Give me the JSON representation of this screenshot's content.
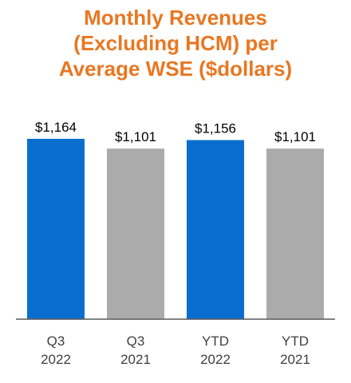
{
  "colors": {
    "title": "#E87722",
    "highlight_bar": "#0A6ED1",
    "comparison_bar": "#ABABAB",
    "axis": "#595959",
    "text": "#000000",
    "tick_text": "#3F3F3F"
  },
  "chart_data": {
    "type": "bar",
    "title_lines": [
      "Monthly Revenues",
      "(Excluding HCM) per",
      "Average WSE ($dollars)"
    ],
    "categories": [
      [
        "Q3",
        "2022"
      ],
      [
        "Q3",
        "2021"
      ],
      [
        "YTD",
        "2022"
      ],
      [
        "YTD",
        "2021"
      ]
    ],
    "values": [
      1164,
      1101,
      1156,
      1101
    ],
    "data_labels": [
      "$1,164",
      "$1,101",
      "$1,156",
      "$1,101"
    ],
    "bar_colors": [
      "highlight",
      "comparison",
      "highlight",
      "comparison"
    ],
    "xlabel": "",
    "ylabel": "",
    "ylim": [
      0,
      1164
    ],
    "grid": false,
    "legend": "none"
  }
}
